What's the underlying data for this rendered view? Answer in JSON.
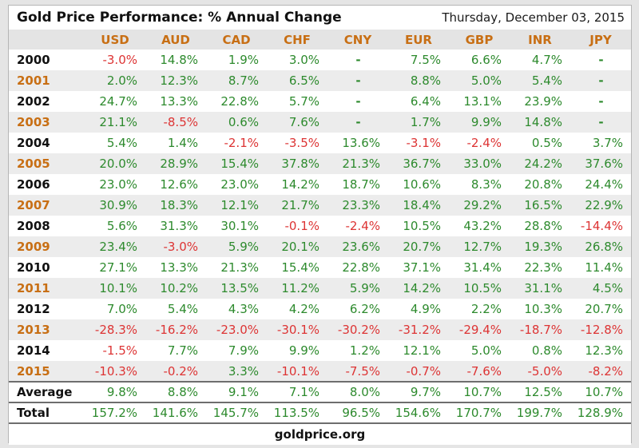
{
  "header": {
    "title": "Gold Price Performance: % Annual Change",
    "date": "Thursday, December 03, 2015"
  },
  "footer": {
    "site": "goldprice.org"
  },
  "colors": {
    "positive": "#2d8a2d",
    "negative": "#dd3434",
    "orange": "#c86f14",
    "stripe": "#ececec",
    "header_row_bg": "#e4e4e4",
    "separator": "#6e6e6e",
    "page_bg": "#e5e5e5"
  },
  "chart_data": {
    "type": "table",
    "title": "Gold Price Performance: % Annual Change",
    "date": "Thursday, December 03, 2015",
    "source": "goldprice.org",
    "columns": [
      "USD",
      "AUD",
      "CAD",
      "CHF",
      "CNY",
      "EUR",
      "GBP",
      "INR",
      "JPY"
    ],
    "rows": [
      {
        "label": "2000",
        "values": [
          "-3.0%",
          "14.8%",
          "1.9%",
          "3.0%",
          "-",
          "7.5%",
          "6.6%",
          "4.7%",
          "-"
        ]
      },
      {
        "label": "2001",
        "values": [
          "2.0%",
          "12.3%",
          "8.7%",
          "6.5%",
          "-",
          "8.8%",
          "5.0%",
          "5.4%",
          "-"
        ]
      },
      {
        "label": "2002",
        "values": [
          "24.7%",
          "13.3%",
          "22.8%",
          "5.7%",
          "-",
          "6.4%",
          "13.1%",
          "23.9%",
          "-"
        ]
      },
      {
        "label": "2003",
        "values": [
          "21.1%",
          "-8.5%",
          "0.6%",
          "7.6%",
          "-",
          "1.7%",
          "9.9%",
          "14.8%",
          "-"
        ]
      },
      {
        "label": "2004",
        "values": [
          "5.4%",
          "1.4%",
          "-2.1%",
          "-3.5%",
          "13.6%",
          "-3.1%",
          "-2.4%",
          "0.5%",
          "3.7%"
        ]
      },
      {
        "label": "2005",
        "values": [
          "20.0%",
          "28.9%",
          "15.4%",
          "37.8%",
          "21.3%",
          "36.7%",
          "33.0%",
          "24.2%",
          "37.6%"
        ]
      },
      {
        "label": "2006",
        "values": [
          "23.0%",
          "12.6%",
          "23.0%",
          "14.2%",
          "18.7%",
          "10.6%",
          "8.3%",
          "20.8%",
          "24.4%"
        ]
      },
      {
        "label": "2007",
        "values": [
          "30.9%",
          "18.3%",
          "12.1%",
          "21.7%",
          "23.3%",
          "18.4%",
          "29.2%",
          "16.5%",
          "22.9%"
        ]
      },
      {
        "label": "2008",
        "values": [
          "5.6%",
          "31.3%",
          "30.1%",
          "-0.1%",
          "-2.4%",
          "10.5%",
          "43.2%",
          "28.8%",
          "-14.4%"
        ]
      },
      {
        "label": "2009",
        "values": [
          "23.4%",
          "-3.0%",
          "5.9%",
          "20.1%",
          "23.6%",
          "20.7%",
          "12.7%",
          "19.3%",
          "26.8%"
        ]
      },
      {
        "label": "2010",
        "values": [
          "27.1%",
          "13.3%",
          "21.3%",
          "15.4%",
          "22.8%",
          "37.1%",
          "31.4%",
          "22.3%",
          "11.4%"
        ]
      },
      {
        "label": "2011",
        "values": [
          "10.1%",
          "10.2%",
          "13.5%",
          "11.2%",
          "5.9%",
          "14.2%",
          "10.5%",
          "31.1%",
          "4.5%"
        ]
      },
      {
        "label": "2012",
        "values": [
          "7.0%",
          "5.4%",
          "4.3%",
          "4.2%",
          "6.2%",
          "4.9%",
          "2.2%",
          "10.3%",
          "20.7%"
        ]
      },
      {
        "label": "2013",
        "values": [
          "-28.3%",
          "-16.2%",
          "-23.0%",
          "-30.1%",
          "-30.2%",
          "-31.2%",
          "-29.4%",
          "-18.7%",
          "-12.8%"
        ]
      },
      {
        "label": "2014",
        "values": [
          "-1.5%",
          "7.7%",
          "7.9%",
          "9.9%",
          "1.2%",
          "12.1%",
          "5.0%",
          "0.8%",
          "12.3%"
        ]
      },
      {
        "label": "2015",
        "values": [
          "-10.3%",
          "-0.2%",
          "3.3%",
          "-10.1%",
          "-7.5%",
          "-0.7%",
          "-7.6%",
          "-5.0%",
          "-8.2%"
        ]
      },
      {
        "label": "Average",
        "values": [
          "9.8%",
          "8.8%",
          "9.1%",
          "7.1%",
          "8.0%",
          "9.7%",
          "10.7%",
          "12.5%",
          "10.7%"
        ]
      },
      {
        "label": "Total",
        "values": [
          "157.2%",
          "141.6%",
          "145.7%",
          "113.5%",
          "96.5%",
          "154.6%",
          "170.7%",
          "199.7%",
          "128.9%"
        ]
      }
    ]
  }
}
